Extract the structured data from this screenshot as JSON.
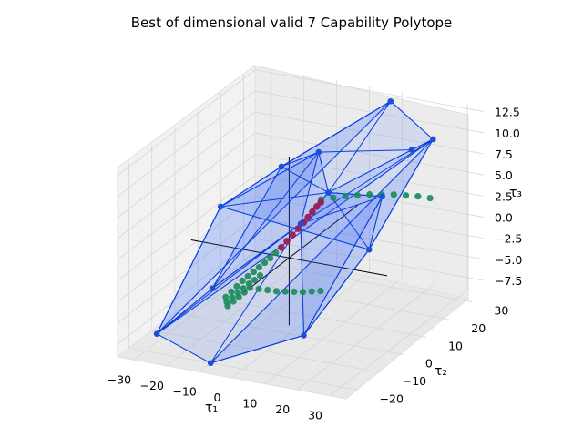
{
  "chart_data": {
    "type": "scatter",
    "projection": "3d",
    "title": "Best of dimensional valid 7 Capability Polytope",
    "xlabel": "τ₁",
    "ylabel": "τ₂",
    "zlabel": "τ₃",
    "xlim": [
      -35,
      35
    ],
    "ylim": [
      -25,
      35
    ],
    "zlim": [
      -9,
      13
    ],
    "xticks": [
      -30,
      -20,
      -10,
      0,
      10,
      20,
      30
    ],
    "yticks": [
      -20,
      -10,
      0,
      10,
      20,
      30
    ],
    "zticks": [
      -7.5,
      -5.0,
      -2.5,
      0.0,
      2.5,
      5.0,
      7.5,
      10.0,
      12.5
    ],
    "xtick_labels": [
      "−30",
      "−20",
      "−10",
      "0",
      "10",
      "20",
      "30"
    ],
    "ytick_labels": [
      "−20",
      "−10",
      "0",
      "10",
      "20",
      "30"
    ],
    "ztick_labels": [
      "−7.5",
      "−5.0",
      "−2.5",
      "0.0",
      "2.5",
      "5.0",
      "7.5",
      "10.0",
      "12.5"
    ],
    "grid": true,
    "colors": {
      "polytope_fill": "#1f5cff",
      "polytope_edge": "#0a3fe0",
      "vertex": "#1a4fd8",
      "trajectory_valid": "#1a8a5a",
      "trajectory_best": "#9b1d55",
      "axes_lines": "#000000"
    },
    "polytope_vertices": [
      [
        -30,
        -15,
        -8
      ],
      [
        -10,
        -20,
        -9
      ],
      [
        30,
        20,
        12
      ],
      [
        10,
        30,
        13
      ],
      [
        -28,
        10,
        2
      ],
      [
        -15,
        18,
        6
      ],
      [
        28,
        -5,
        4
      ],
      [
        15,
        -15,
        -5
      ],
      [
        -20,
        -5,
        -4
      ],
      [
        20,
        25,
        9
      ],
      [
        0,
        5,
        3
      ],
      [
        5,
        10,
        6
      ],
      [
        -5,
        20,
        8
      ],
      [
        25,
        5,
        8
      ]
    ],
    "trajectory_valid": [
      [
        -18,
        -2,
        -5.5
      ],
      [
        -17,
        -1,
        -5.0
      ],
      [
        -16,
        0,
        -4.5
      ],
      [
        -15,
        1,
        -4.0
      ],
      [
        -14,
        2,
        -3.6
      ],
      [
        -13,
        3,
        -3.2
      ],
      [
        -12,
        4,
        -2.8
      ],
      [
        -11,
        5,
        -2.4
      ],
      [
        -10,
        6,
        -2.0
      ],
      [
        -9,
        7,
        -1.5
      ],
      [
        -17,
        -3,
        -5.8
      ],
      [
        -16,
        -2,
        -5.4
      ],
      [
        -15,
        -1,
        -5.0
      ],
      [
        -14,
        0,
        -4.6
      ],
      [
        -13,
        1,
        -4.2
      ],
      [
        -12,
        2,
        -3.9
      ],
      [
        -11,
        3,
        -3.5
      ],
      [
        -16,
        -4,
        -6.0
      ],
      [
        -15,
        -3,
        -5.6
      ],
      [
        -14,
        -2,
        -5.2
      ],
      [
        -13,
        -1,
        -4.8
      ],
      [
        -12,
        0,
        -4.4
      ],
      [
        -10,
        1,
        -4.6
      ],
      [
        -8,
        2,
        -4.8
      ],
      [
        -6,
        3,
        -5.0
      ],
      [
        -4,
        4,
        -5.1
      ],
      [
        -2,
        5,
        -5.2
      ],
      [
        0,
        6,
        -5.3
      ],
      [
        2,
        7,
        -5.3
      ],
      [
        4,
        8,
        -5.3
      ],
      [
        0,
        14,
        4.0
      ],
      [
        3,
        15,
        4.2
      ],
      [
        6,
        16,
        4.4
      ],
      [
        9,
        17,
        4.5
      ],
      [
        12,
        18,
        4.6
      ],
      [
        15,
        19,
        4.6
      ],
      [
        18,
        20,
        4.6
      ],
      [
        21,
        21,
        4.5
      ],
      [
        24,
        22,
        4.4
      ],
      [
        27,
        23,
        4.2
      ]
    ],
    "trajectory_best": [
      [
        -8,
        8,
        -1.0
      ],
      [
        -7,
        9,
        -0.4
      ],
      [
        -6,
        10,
        0.2
      ],
      [
        -5,
        11,
        0.8
      ],
      [
        -4,
        12,
        1.4
      ],
      [
        -3,
        12.5,
        2.0
      ],
      [
        -2,
        13,
        2.6
      ],
      [
        -1,
        13.5,
        3.2
      ],
      [
        0,
        13.8,
        3.7
      ]
    ]
  }
}
